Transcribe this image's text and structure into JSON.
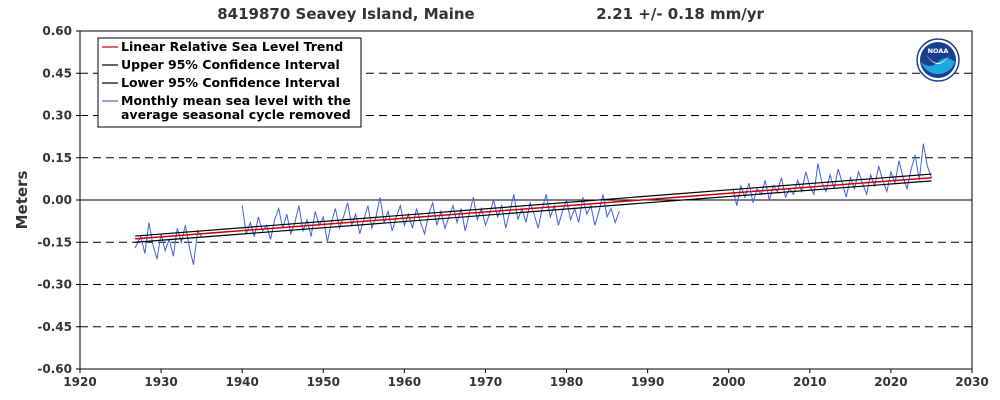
{
  "header": {
    "station": "8419870 Seavey Island, Maine",
    "trend": "2.21 +/-  0.18 mm/yr"
  },
  "chart_data": {
    "type": "line",
    "ylabel": "Meters",
    "xlim": [
      1920,
      2030
    ],
    "ylim": [
      -0.6,
      0.6
    ],
    "x_ticks": [
      1920,
      1930,
      1940,
      1950,
      1960,
      1970,
      1980,
      1990,
      2000,
      2010,
      2020,
      2030
    ],
    "y_ticks": [
      -0.6,
      -0.45,
      -0.3,
      -0.15,
      0.0,
      0.15,
      0.3,
      0.45,
      0.6
    ],
    "x_tick_labels": [
      "1920",
      "1930",
      "1940",
      "1950",
      "1960",
      "1970",
      "1980",
      "1990",
      "2000",
      "2010",
      "2020",
      "2030"
    ],
    "y_tick_labels": [
      "-0.60",
      "-0.45",
      "-0.30",
      "-0.15",
      "0.00",
      "0.15",
      "0.30",
      "0.45",
      "0.60"
    ],
    "grid": "dashed horizontal at y ticks; solid line at 0",
    "legend": {
      "placement": "top-left"
    },
    "series": [
      {
        "name": "Linear Relative Sea Level Trend",
        "color": "#cc0000",
        "type": "trend",
        "x": [
          1926.8,
          2025.0
        ],
        "y": [
          -0.138,
          0.079
        ]
      },
      {
        "name": "Upper 95% Confidence Interval",
        "color": "#000000",
        "type": "ci",
        "x": [
          1926.8,
          2025.0
        ],
        "y": [
          -0.128,
          0.092
        ]
      },
      {
        "name": "Lower 95% Confidence Interval",
        "color": "#000000",
        "type": "ci",
        "x": [
          1926.8,
          2025.0
        ],
        "y": [
          -0.15,
          0.068
        ]
      },
      {
        "name": "Monthly mean sea level with the average seasonal cycle removed",
        "color": "#3b63e0",
        "type": "monthly",
        "segments": [
          {
            "x": [
              1926.8,
              1927.5,
              1928.0,
              1928.5,
              1929.0,
              1929.5,
              1930.0,
              1930.5,
              1931.0,
              1931.5,
              1932.0,
              1932.5,
              1933.0,
              1933.5,
              1934.0,
              1934.5,
              1935.0
            ],
            "y": [
              -0.17,
              -0.13,
              -0.19,
              -0.08,
              -0.16,
              -0.21,
              -0.12,
              -0.18,
              -0.14,
              -0.2,
              -0.1,
              -0.15,
              -0.09,
              -0.17,
              -0.23,
              -0.11,
              -0.13
            ]
          },
          {
            "x": [
              1940.0,
              1940.5,
              1941.0,
              1941.5,
              1942.0,
              1942.5,
              1943.0,
              1943.5,
              1944.0,
              1944.5,
              1945.0,
              1945.5,
              1946.0,
              1946.5,
              1947.0,
              1947.5,
              1948.0,
              1948.5,
              1949.0,
              1949.5,
              1950.0,
              1950.5,
              1951.0,
              1951.5,
              1952.0,
              1952.5,
              1953.0,
              1953.5,
              1954.0,
              1954.5,
              1955.0,
              1955.5,
              1956.0,
              1956.5,
              1957.0,
              1957.5,
              1958.0,
              1958.5,
              1959.0,
              1959.5,
              1960.0,
              1960.5,
              1961.0,
              1961.5,
              1962.0,
              1962.5,
              1963.0,
              1963.5,
              1964.0,
              1964.5,
              1965.0,
              1965.5,
              1966.0,
              1966.5,
              1967.0,
              1967.5,
              1968.0,
              1968.5,
              1969.0,
              1969.5,
              1970.0,
              1970.5,
              1971.0,
              1971.5,
              1972.0,
              1972.5,
              1973.0,
              1973.5,
              1974.0,
              1974.5,
              1975.0,
              1975.5,
              1976.0,
              1976.5,
              1977.0,
              1977.5,
              1978.0,
              1978.5,
              1979.0,
              1979.5,
              1980.0,
              1980.5,
              1981.0,
              1981.5,
              1982.0,
              1982.5,
              1983.0,
              1983.5,
              1984.0,
              1984.5,
              1985.0,
              1985.5,
              1986.0,
              1986.5
            ],
            "y": [
              -0.02,
              -0.12,
              -0.08,
              -0.13,
              -0.06,
              -0.11,
              -0.09,
              -0.14,
              -0.07,
              -0.03,
              -0.1,
              -0.05,
              -0.12,
              -0.08,
              -0.02,
              -0.11,
              -0.07,
              -0.13,
              -0.04,
              -0.09,
              -0.06,
              -0.15,
              -0.08,
              -0.03,
              -0.1,
              -0.06,
              -0.01,
              -0.09,
              -0.05,
              -0.12,
              -0.07,
              -0.02,
              -0.1,
              -0.06,
              0.01,
              -0.08,
              -0.04,
              -0.11,
              -0.06,
              -0.02,
              -0.09,
              -0.05,
              -0.1,
              -0.03,
              -0.08,
              -0.12,
              -0.05,
              -0.01,
              -0.09,
              -0.04,
              -0.1,
              -0.06,
              -0.02,
              -0.08,
              -0.03,
              -0.11,
              -0.05,
              0.01,
              -0.07,
              -0.03,
              -0.09,
              -0.05,
              0.0,
              -0.06,
              -0.02,
              -0.1,
              -0.04,
              0.02,
              -0.07,
              -0.03,
              -0.08,
              -0.01,
              -0.05,
              -0.1,
              -0.03,
              0.02,
              -0.06,
              -0.02,
              -0.09,
              -0.04,
              0.0,
              -0.07,
              -0.03,
              -0.08,
              0.01,
              -0.05,
              -0.02,
              -0.09,
              -0.04,
              0.02,
              -0.06,
              -0.03,
              -0.08,
              -0.04
            ]
          },
          {
            "x": [
              2000.5,
              2001.0,
              2001.5,
              2002.0,
              2002.5,
              2003.0,
              2003.5,
              2004.0,
              2004.5,
              2005.0,
              2005.5,
              2006.0,
              2006.5,
              2007.0,
              2007.5,
              2008.0,
              2008.5,
              2009.0,
              2009.5,
              2010.0,
              2010.5,
              2011.0,
              2011.5,
              2012.0,
              2012.5,
              2013.0,
              2013.5,
              2014.0,
              2014.5,
              2015.0,
              2015.5,
              2016.0,
              2016.5,
              2017.0,
              2017.5,
              2018.0,
              2018.5,
              2019.0,
              2019.5,
              2020.0,
              2020.5,
              2021.0,
              2021.5,
              2022.0,
              2022.5,
              2023.0,
              2023.5,
              2024.0,
              2024.5,
              2025.0
            ],
            "y": [
              0.04,
              -0.02,
              0.05,
              0.01,
              0.06,
              -0.01,
              0.04,
              0.02,
              0.07,
              0.0,
              0.05,
              0.03,
              0.08,
              0.01,
              0.04,
              0.02,
              0.07,
              0.03,
              0.1,
              0.05,
              0.02,
              0.13,
              0.06,
              0.03,
              0.09,
              0.04,
              0.11,
              0.06,
              0.01,
              0.08,
              0.04,
              0.1,
              0.06,
              0.02,
              0.09,
              0.05,
              0.12,
              0.07,
              0.03,
              0.1,
              0.06,
              0.14,
              0.08,
              0.04,
              0.11,
              0.16,
              0.07,
              0.2,
              0.12,
              0.08
            ]
          }
        ]
      }
    ]
  },
  "logo": {
    "text": "NOAA"
  }
}
